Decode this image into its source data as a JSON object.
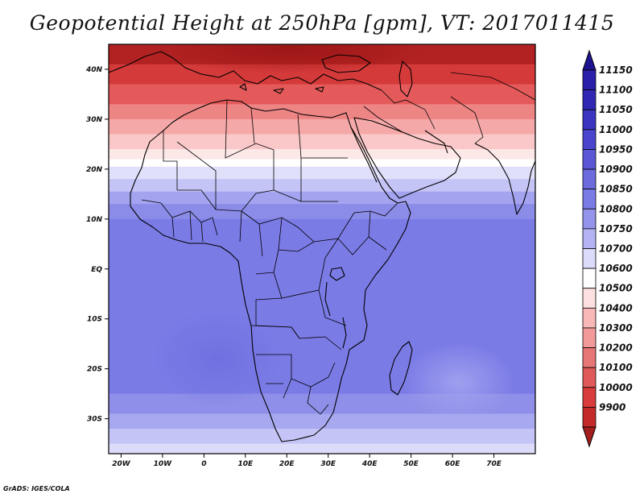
{
  "title": "Geopotential Height at 250hPa [gpm], VT: 2017011415",
  "credit": "GrADS: IGES/COLA",
  "map": {
    "lon_range": [
      -23,
      80
    ],
    "lat_range": [
      -37,
      45
    ],
    "x_ticks": [
      {
        "lon": -20,
        "label": "20W"
      },
      {
        "lon": -10,
        "label": "10W"
      },
      {
        "lon": 0,
        "label": "0"
      },
      {
        "lon": 10,
        "label": "10E"
      },
      {
        "lon": 20,
        "label": "20E"
      },
      {
        "lon": 30,
        "label": "30E"
      },
      {
        "lon": 40,
        "label": "40E"
      },
      {
        "lon": 50,
        "label": "50E"
      },
      {
        "lon": 60,
        "label": "60E"
      },
      {
        "lon": 70,
        "label": "70E"
      }
    ],
    "y_ticks": [
      {
        "lat": 40,
        "label": "40N"
      },
      {
        "lat": 30,
        "label": "30N"
      },
      {
        "lat": 20,
        "label": "20N"
      },
      {
        "lat": 10,
        "label": "10N"
      },
      {
        "lat": 0,
        "label": "EQ"
      },
      {
        "lat": -10,
        "label": "10S"
      },
      {
        "lat": -20,
        "label": "20S"
      },
      {
        "lat": -30,
        "label": "30S"
      }
    ],
    "field_bands_by_latitude": [
      {
        "from_lat": 45,
        "to_lat": 41,
        "color": "#b22222"
      },
      {
        "from_lat": 41,
        "to_lat": 37,
        "color": "#d53a3a"
      },
      {
        "from_lat": 37,
        "to_lat": 33,
        "color": "#e45a5a"
      },
      {
        "from_lat": 33,
        "to_lat": 30,
        "color": "#ee8585"
      },
      {
        "from_lat": 30,
        "to_lat": 27,
        "color": "#f5a8a8"
      },
      {
        "from_lat": 27,
        "to_lat": 24,
        "color": "#fac8c8"
      },
      {
        "from_lat": 24,
        "to_lat": 22,
        "color": "#fde8e8"
      },
      {
        "from_lat": 22,
        "to_lat": 20.5,
        "color": "#ffffff"
      },
      {
        "from_lat": 20.5,
        "to_lat": 18,
        "color": "#e0e0fb"
      },
      {
        "from_lat": 18,
        "to_lat": 15.5,
        "color": "#c4c4f6"
      },
      {
        "from_lat": 15.5,
        "to_lat": 13,
        "color": "#a3a3ef"
      },
      {
        "from_lat": 13,
        "to_lat": 10,
        "color": "#8b8be8"
      },
      {
        "from_lat": 10,
        "to_lat": -25,
        "color": "#7b7be6"
      },
      {
        "from_lat": -25,
        "to_lat": -29,
        "color": "#8f8fe9"
      },
      {
        "from_lat": -29,
        "to_lat": -32,
        "color": "#a8a8f0"
      },
      {
        "from_lat": -32,
        "to_lat": -35,
        "color": "#c4c4f6"
      },
      {
        "from_lat": -35,
        "to_lat": -37,
        "color": "#dcdcfa"
      }
    ]
  },
  "colorbar": {
    "levels": [
      {
        "label": "11150",
        "color": "#2a1fa8"
      },
      {
        "label": "11100",
        "color": "#3028b4"
      },
      {
        "label": "11050",
        "color": "#3a34c0"
      },
      {
        "label": "11000",
        "color": "#4a45cc"
      },
      {
        "label": "10950",
        "color": "#5a56d6"
      },
      {
        "label": "10900",
        "color": "#6c6add"
      },
      {
        "label": "10850",
        "color": "#7b7be6"
      },
      {
        "label": "10800",
        "color": "#9494ec"
      },
      {
        "label": "10750",
        "color": "#b4b4f3"
      },
      {
        "label": "10700",
        "color": "#dcdcfa"
      },
      {
        "label": "10600",
        "color": "#ffffff"
      },
      {
        "label": "10500",
        "color": "#fde0e0"
      },
      {
        "label": "10400",
        "color": "#f8b8b8"
      },
      {
        "label": "10300",
        "color": "#f29a9a"
      },
      {
        "label": "10200",
        "color": "#e77777"
      },
      {
        "label": "10100",
        "color": "#e05a5a"
      },
      {
        "label": "10000",
        "color": "#d83c3c"
      },
      {
        "label": "9900",
        "color": "#c42a2a"
      }
    ],
    "top_cap_color": "#1f1490",
    "bottom_cap_color": "#a51e1e"
  }
}
